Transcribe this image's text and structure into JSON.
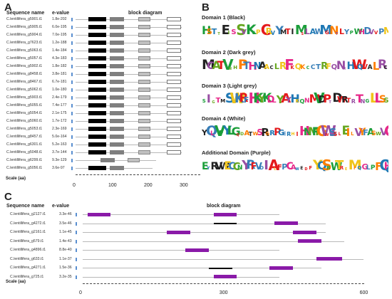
{
  "panel_a": {
    "letter": "A",
    "header_name": "Sequence name",
    "header_evalue": "e-value",
    "header_diagram": "block diagram",
    "scale_label": "Scale (aa)",
    "ticks": [
      "0",
      "100",
      "200",
      "300"
    ],
    "colors": {
      "domain1": "#000000",
      "domain2": "#7f7f7f",
      "domain3": "#c0c0c0",
      "domain4": "#ffffff"
    }
  },
  "panel_b": {
    "letter": "B",
    "domains": [
      {
        "title": "Domain 1 (Black)"
      },
      {
        "title": "Domain 2 (Dark grey)"
      },
      {
        "title": "Domain 3 (Light grey)"
      },
      {
        "title": "Domain 4 (White)"
      },
      {
        "title": "Additional Domain (Purple)"
      }
    ]
  },
  "panel_c": {
    "letter": "C",
    "header_name": "Sequence name",
    "header_evalue": "e-value",
    "header_diagram": "block diagram",
    "scale_label": "Scale (aa)",
    "ticks": [
      "0",
      "300",
      "600"
    ],
    "colors": {
      "purple": "#8a1aa8",
      "black": "#000000"
    }
  },
  "chart_data": [
    {
      "type": "table",
      "panel": "A",
      "scale_range_aa": [
        0,
        330
      ],
      "rows": [
        {
          "name": "C.lentillifera_g5901.t1",
          "evalue": "1.8e-202",
          "length": 330,
          "domains": [
            [
              35,
              85
            ],
            [
              95,
              135
            ],
            [
              175,
              210
            ],
            [
              255,
              295
            ]
          ]
        },
        {
          "name": "C.lentillifera_g5905.t1",
          "evalue": "6.0e-195",
          "length": 330,
          "domains": [
            [
              35,
              85
            ],
            [
              95,
              135
            ],
            [
              175,
              210
            ],
            [
              255,
              295
            ]
          ]
        },
        {
          "name": "C.lentillifera_g5904.t1",
          "evalue": "7.0e-195",
          "length": 330,
          "domains": [
            [
              35,
              85
            ],
            [
              95,
              135
            ],
            [
              175,
              210
            ],
            [
              255,
              295
            ]
          ]
        },
        {
          "name": "C.lentillifera_g7623.t1",
          "evalue": "1.2e-188",
          "length": 330,
          "domains": [
            [
              35,
              85
            ],
            [
              95,
              135
            ],
            [
              175,
              210
            ],
            [
              255,
              295
            ]
          ]
        },
        {
          "name": "C.lentillifera_g5063.t1",
          "evalue": "1.4e-184",
          "length": 330,
          "domains": [
            [
              35,
              85
            ],
            [
              95,
              135
            ],
            [
              175,
              210
            ],
            [
              255,
              295
            ]
          ]
        },
        {
          "name": "C.lentillifera_g5057.t1",
          "evalue": "4.3e-183",
          "length": 330,
          "domains": [
            [
              35,
              85
            ],
            [
              95,
              135
            ],
            [
              175,
              210
            ],
            [
              255,
              295
            ]
          ]
        },
        {
          "name": "C.lentillifera_g5902.t1",
          "evalue": "1.8e-182",
          "length": 330,
          "domains": [
            [
              35,
              85
            ],
            [
              95,
              135
            ],
            [
              175,
              210
            ],
            [
              255,
              295
            ]
          ]
        },
        {
          "name": "C.lentillifera_g8458.t1",
          "evalue": "3.8e-181",
          "length": 330,
          "domains": [
            [
              35,
              85
            ],
            [
              95,
              135
            ],
            [
              175,
              210
            ],
            [
              255,
              295
            ]
          ]
        },
        {
          "name": "C.lentillifera_g8467.t1",
          "evalue": "6.7e-181",
          "length": 330,
          "domains": [
            [
              35,
              85
            ],
            [
              95,
              135
            ],
            [
              175,
              210
            ],
            [
              255,
              295
            ]
          ]
        },
        {
          "name": "C.lentillifera_g5062.t1",
          "evalue": "1.0e-180",
          "length": 330,
          "domains": [
            [
              35,
              85
            ],
            [
              95,
              135
            ],
            [
              175,
              210
            ],
            [
              255,
              295
            ]
          ]
        },
        {
          "name": "C.lentillifera_g5903.t1",
          "evalue": "2.4e-179",
          "length": 330,
          "domains": [
            [
              35,
              85
            ],
            [
              95,
              135
            ],
            [
              175,
              210
            ],
            [
              255,
              295
            ]
          ]
        },
        {
          "name": "C.lentillifera_g5055.t1",
          "evalue": "7.4e-177",
          "length": 330,
          "domains": [
            [
              35,
              85
            ],
            [
              95,
              135
            ],
            [
              175,
              210
            ],
            [
              255,
              295
            ]
          ]
        },
        {
          "name": "C.lentillifera_g5054.t1",
          "evalue": "2.1e-175",
          "length": 330,
          "domains": [
            [
              35,
              85
            ],
            [
              95,
              135
            ],
            [
              175,
              210
            ],
            [
              255,
              295
            ]
          ]
        },
        {
          "name": "C.lentillifera_g5060.t1",
          "evalue": "1.7e-172",
          "length": 330,
          "domains": [
            [
              35,
              85
            ],
            [
              95,
              135
            ],
            [
              175,
              210
            ],
            [
              255,
              295
            ]
          ]
        },
        {
          "name": "C.lentillifera_g5053.t1",
          "evalue": "2.3e-169",
          "length": 330,
          "domains": [
            [
              35,
              85
            ],
            [
              95,
              135
            ],
            [
              175,
              210
            ],
            [
              255,
              295
            ]
          ]
        },
        {
          "name": "C.lentillifera_g8457.t1",
          "evalue": "5.0e-164",
          "length": 330,
          "domains": [
            [
              35,
              85
            ],
            [
              95,
              135
            ],
            [
              175,
              210
            ],
            [
              255,
              295
            ]
          ]
        },
        {
          "name": "C.lentillifera_g6301.t1",
          "evalue": "5.2e-163",
          "length": 330,
          "domains": [
            [
              35,
              85
            ],
            [
              95,
              135
            ],
            [
              175,
              210
            ],
            [
              255,
              295
            ]
          ]
        },
        {
          "name": "C.lentillifera_g5048.t1",
          "evalue": "3.7e-144",
          "length": 330,
          "domains": [
            [
              35,
              85
            ],
            [
              95,
              135
            ],
            [
              175,
              210
            ],
            [
              255,
              295
            ]
          ]
        },
        {
          "name": "C.lentillifera_g6299.t1",
          "evalue": "9.3e-129",
          "length": 250,
          "domains": [
            [
              null,
              null
            ],
            [
              70,
              110
            ],
            [
              145,
              180
            ],
            [
              null,
              null
            ]
          ]
        },
        {
          "name": "C.lentillifera_g5056.t1",
          "evalue": "3.6e-97",
          "length": 240,
          "domains": [
            [
              35,
              85
            ],
            [
              95,
              135
            ],
            [
              null,
              null
            ],
            [
              null,
              null
            ]
          ]
        }
      ]
    },
    {
      "type": "table",
      "panel": "C",
      "scale_range_aa": [
        0,
        600
      ],
      "rows": [
        {
          "name": "C.lentillifera_g2127.t1",
          "evalue": "3.3e-46",
          "length": 420,
          "boxes": [
            [
              10,
              60,
              "purple"
            ],
            [
              280,
              330,
              "purple"
            ]
          ]
        },
        {
          "name": "C.lentillifera_g4272.t1",
          "evalue": "3.5e-46",
          "length": 520,
          "boxes": [
            [
              280,
              330,
              "black"
            ],
            [
              410,
              460,
              "purple"
            ]
          ]
        },
        {
          "name": "C.lentillifera_g2161.t1",
          "evalue": "1.1e-45",
          "length": 520,
          "boxes": [
            [
              180,
              230,
              "purple"
            ],
            [
              450,
              500,
              "purple"
            ]
          ]
        },
        {
          "name": "C.lentillifera_g579.t1",
          "evalue": "1.4e-43",
          "length": 560,
          "boxes": [
            [
              460,
              510,
              "purple"
            ]
          ]
        },
        {
          "name": "C.lentillifera_g4896.t1",
          "evalue": "8.8e-40",
          "length": 420,
          "boxes": [
            [
              220,
              270,
              "purple"
            ]
          ]
        },
        {
          "name": "C.lentillifera_g633.t1",
          "evalue": "1.1e-37",
          "length": 600,
          "boxes": [
            [
              500,
              555,
              "purple"
            ]
          ]
        },
        {
          "name": "C.lentillifera_g4271.t1",
          "evalue": "1.5e-36",
          "length": 510,
          "boxes": [
            [
              270,
              320,
              "black"
            ],
            [
              400,
              450,
              "purple"
            ]
          ]
        },
        {
          "name": "C.lentillifera_g725.t1",
          "evalue": "3.2e-35",
          "length": 420,
          "boxes": [
            [
              280,
              330,
              "purple"
            ]
          ]
        }
      ]
    }
  ]
}
